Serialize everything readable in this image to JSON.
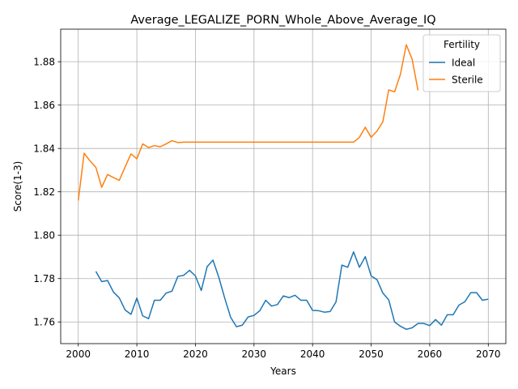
{
  "chart_data": {
    "type": "line",
    "title": "Average_LEGALIZE_PORN_Whole_Above_Average_IQ",
    "xlabel": "Years",
    "ylabel": "Score(1-3)",
    "xlim": [
      1997,
      2073
    ],
    "ylim": [
      1.75,
      1.895
    ],
    "xticks": [
      2000,
      2010,
      2020,
      2030,
      2040,
      2050,
      2060,
      2070
    ],
    "yticks": [
      1.76,
      1.78,
      1.8,
      1.82,
      1.84,
      1.86,
      1.88
    ],
    "grid": true,
    "legend": {
      "title": "Fertility",
      "placement": "top-right"
    },
    "series": [
      {
        "name": "Ideal",
        "color": "#1f77b4",
        "x": [
          2003,
          2004,
          2005,
          2006,
          2007,
          2008,
          2009,
          2010,
          2011,
          2012,
          2013,
          2014,
          2015,
          2016,
          2017,
          2018,
          2019,
          2020,
          2021,
          2022,
          2023,
          2024,
          2025,
          2026,
          2027,
          2028,
          2029,
          2030,
          2031,
          2032,
          2033,
          2034,
          2035,
          2036,
          2037,
          2038,
          2039,
          2040,
          2041,
          2042,
          2043,
          2044,
          2045,
          2046,
          2047,
          2048,
          2049,
          2050,
          2051,
          2052,
          2053,
          2054,
          2055,
          2056,
          2057,
          2058,
          2059,
          2060,
          2061,
          2062,
          2063,
          2064,
          2065,
          2066,
          2067,
          2068,
          2069,
          2070
        ],
        "values": [
          1.7833,
          1.7786,
          1.7791,
          1.7738,
          1.7711,
          1.7655,
          1.7635,
          1.771,
          1.7628,
          1.7615,
          1.77,
          1.77,
          1.7733,
          1.7742,
          1.781,
          1.7815,
          1.7838,
          1.7812,
          1.7745,
          1.7855,
          1.7885,
          1.7805,
          1.771,
          1.7622,
          1.7578,
          1.7585,
          1.7623,
          1.763,
          1.7652,
          1.77,
          1.7673,
          1.768,
          1.772,
          1.7712,
          1.7723,
          1.77,
          1.77,
          1.7653,
          1.7652,
          1.7645,
          1.7648,
          1.7692,
          1.7862,
          1.7852,
          1.7923,
          1.7852,
          1.7901,
          1.7812,
          1.7795,
          1.7733,
          1.7702,
          1.76,
          1.758,
          1.7566,
          1.7573,
          1.7593,
          1.7593,
          1.7583,
          1.7611,
          1.7585,
          1.7633,
          1.7633,
          1.7678,
          1.7693,
          1.7735,
          1.7735,
          1.77,
          1.7705
        ]
      },
      {
        "name": "Sterile",
        "color": "#ff7f0e",
        "x": [
          2000,
          2001,
          2002,
          2003,
          2004,
          2005,
          2006,
          2007,
          2008,
          2009,
          2010,
          2011,
          2012,
          2013,
          2014,
          2015,
          2016,
          2017,
          2018,
          2019,
          2020,
          2021,
          2022,
          2023,
          2024,
          2025,
          2026,
          2027,
          2028,
          2029,
          2030,
          2031,
          2032,
          2033,
          2034,
          2035,
          2036,
          2037,
          2038,
          2039,
          2040,
          2041,
          2042,
          2043,
          2044,
          2045,
          2046,
          2047,
          2048,
          2049,
          2050,
          2051,
          2052,
          2053,
          2054,
          2055,
          2056,
          2057,
          2058
        ],
        "values": [
          1.816,
          1.8378,
          1.8343,
          1.8313,
          1.8221,
          1.828,
          1.8266,
          1.8253,
          1.8315,
          1.8375,
          1.8352,
          1.8421,
          1.8404,
          1.8413,
          1.8408,
          1.8421,
          1.8436,
          1.8427,
          1.8429,
          1.8429,
          1.8429,
          1.8429,
          1.8429,
          1.8429,
          1.8429,
          1.8429,
          1.8429,
          1.8429,
          1.8429,
          1.8429,
          1.8429,
          1.8429,
          1.8429,
          1.8429,
          1.8429,
          1.8429,
          1.8429,
          1.8429,
          1.8429,
          1.8429,
          1.8429,
          1.8429,
          1.8429,
          1.8429,
          1.8429,
          1.8429,
          1.8429,
          1.8429,
          1.8451,
          1.8498,
          1.8451,
          1.848,
          1.8523,
          1.867,
          1.8661,
          1.8742,
          1.8878,
          1.8812,
          1.8668
        ]
      }
    ]
  }
}
